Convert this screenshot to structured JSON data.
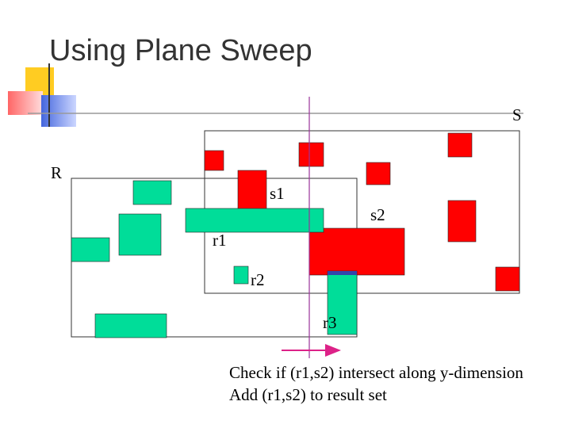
{
  "title": "Using Plane Sweep",
  "labels": {
    "S": "S",
    "R": "R",
    "s1": "s1",
    "s2": "s2",
    "r1": "r1",
    "r2": "r2",
    "r3": "r3"
  },
  "caption": [
    "Check if (r1,s2) intersect along y-dimension",
    "Add (r1,s2) to result set"
  ]
}
